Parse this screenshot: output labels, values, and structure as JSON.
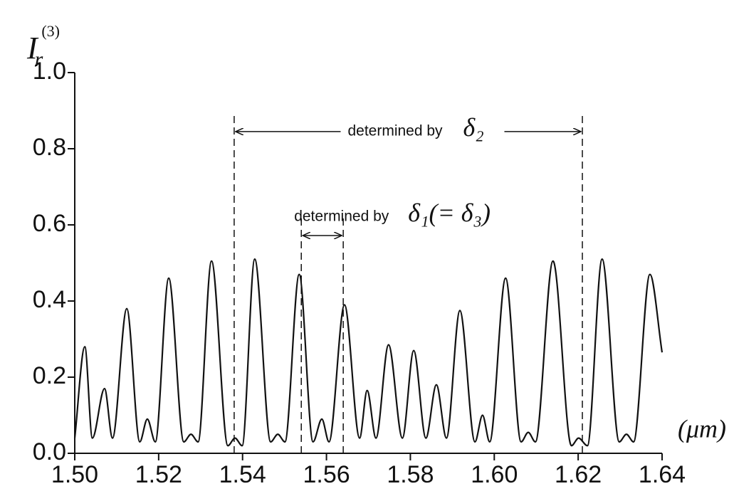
{
  "chart_data": {
    "type": "line",
    "ylabel": {
      "base": "I",
      "sub": "r",
      "sup": "(3)"
    },
    "xlabel": "(μm)",
    "xlim": [
      1.5,
      1.64
    ],
    "ylim": [
      0,
      1
    ],
    "xticks": [
      {
        "value": 1.5,
        "label": "1.50"
      },
      {
        "value": 1.52,
        "label": "1.52"
      },
      {
        "value": 1.54,
        "label": "1.54"
      },
      {
        "value": 1.56,
        "label": "1.56"
      },
      {
        "value": 1.58,
        "label": "1.58"
      },
      {
        "value": 1.6,
        "label": "1.60"
      },
      {
        "value": 1.62,
        "label": "1.62"
      },
      {
        "value": 1.64,
        "label": "1.64"
      }
    ],
    "yticks": [
      {
        "value": 0,
        "label": "0.0"
      },
      {
        "value": 0.2,
        "label": "0.2"
      },
      {
        "value": 0.4,
        "label": "0.4"
      },
      {
        "value": 0.6,
        "label": "0.6"
      },
      {
        "value": 0.8,
        "label": "0.8"
      },
      {
        "value": 1,
        "label": "1.0"
      }
    ],
    "series": [
      {
        "color": "#111111",
        "x": [
          1.5,
          1.5024,
          1.5042,
          1.5071,
          1.509,
          1.5124,
          1.5155,
          1.5173,
          1.5192,
          1.5224,
          1.526,
          1.5277,
          1.5294,
          1.5326,
          1.5365,
          1.5382,
          1.5399,
          1.5429,
          1.5467,
          1.5484,
          1.5501,
          1.5535,
          1.5568,
          1.5589,
          1.5606,
          1.5643,
          1.5679,
          1.5697,
          1.5718,
          1.5748,
          1.5781,
          1.5808,
          1.5837,
          1.5862,
          1.5886,
          1.5918,
          1.5954,
          1.5972,
          1.5989,
          1.6027,
          1.6064,
          1.6081,
          1.6098,
          1.614,
          1.6184,
          1.6201,
          1.6222,
          1.6257,
          1.6298,
          1.6315,
          1.6332,
          1.6371,
          1.64
        ],
        "values": [
          0.04,
          0.28,
          0.04,
          0.17,
          0.04,
          0.38,
          0.03,
          0.09,
          0.03,
          0.46,
          0.03,
          0.05,
          0.03,
          0.505,
          0.02,
          0.04,
          0.02,
          0.51,
          0.03,
          0.05,
          0.03,
          0.47,
          0.03,
          0.09,
          0.03,
          0.39,
          0.04,
          0.165,
          0.04,
          0.285,
          0.04,
          0.27,
          0.04,
          0.18,
          0.04,
          0.375,
          0.03,
          0.1,
          0.03,
          0.46,
          0.03,
          0.055,
          0.03,
          0.505,
          0.02,
          0.04,
          0.02,
          0.51,
          0.03,
          0.05,
          0.03,
          0.47,
          0.265
        ]
      }
    ],
    "dashed_lines": [
      {
        "x": 1.538,
        "y": [
          0,
          0.89
        ]
      },
      {
        "x": 1.621,
        "y": [
          0,
          0.89
        ]
      },
      {
        "x": 1.554,
        "y": [
          0,
          0.617
        ]
      },
      {
        "x": 1.564,
        "y": [
          0,
          0.617
        ]
      }
    ],
    "annotations": [
      {
        "text": "determined by",
        "math": "δ₂",
        "from": 1.538,
        "to": 1.621,
        "y": 0.845
      },
      {
        "text": "determined by",
        "math": "δ₁(= δ₃)",
        "from": 1.554,
        "to": 1.564,
        "y": 0.572
      }
    ]
  }
}
